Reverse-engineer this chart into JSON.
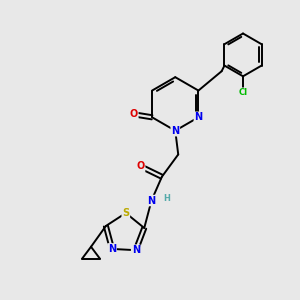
{
  "bg_color": "#e8e8e8",
  "bond_color": "#000000",
  "atom_colors": {
    "N": "#0000ee",
    "O": "#dd0000",
    "S": "#bbaa00",
    "Cl": "#00bb00",
    "C": "#000000",
    "H": "#55aaaa"
  }
}
